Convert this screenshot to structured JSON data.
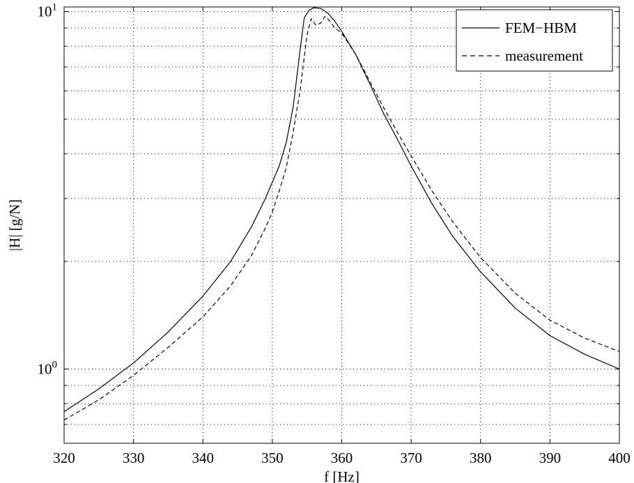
{
  "chart_data": {
    "type": "line",
    "title": "",
    "xlabel": "f [Hz]",
    "ylabel": "|H| [g/N]",
    "xlim": [
      320,
      400
    ],
    "ylim": [
      0.62,
      10.3
    ],
    "yscale": "log",
    "grid": true,
    "legend_position": "top-right",
    "x_ticks": [
      {
        "value": 320,
        "label": "320"
      },
      {
        "value": 330,
        "label": "330"
      },
      {
        "value": 340,
        "label": "340"
      },
      {
        "value": 350,
        "label": "350"
      },
      {
        "value": 360,
        "label": "360"
      },
      {
        "value": 370,
        "label": "370"
      },
      {
        "value": 380,
        "label": "380"
      },
      {
        "value": 390,
        "label": "390"
      },
      {
        "value": 400,
        "label": "400"
      }
    ],
    "y_ticks": [
      {
        "value": 1,
        "base": "10",
        "exp": "0"
      },
      {
        "value": 10,
        "base": "10",
        "exp": "1"
      }
    ],
    "y_minor_grid": [
      0.7,
      0.8,
      0.9,
      2,
      3,
      4,
      5,
      6,
      7,
      8,
      9
    ],
    "series": [
      {
        "name": "FEM−HBM",
        "style": "solid",
        "color": "#000000",
        "x": [
          320,
          325,
          330,
          335,
          340,
          344,
          347,
          349,
          351,
          352,
          353,
          354,
          354.6,
          355.3,
          356,
          357,
          358,
          359,
          360,
          362,
          364,
          366,
          368,
          370,
          373,
          376,
          380,
          385,
          390,
          395,
          400
        ],
        "y": [
          0.76,
          0.88,
          1.04,
          1.27,
          1.6,
          2.0,
          2.5,
          3.0,
          3.7,
          4.3,
          5.4,
          7.8,
          9.6,
          10.1,
          10.25,
          10.2,
          9.9,
          9.4,
          8.8,
          7.6,
          6.3,
          5.2,
          4.4,
          3.7,
          2.9,
          2.35,
          1.87,
          1.48,
          1.24,
          1.1,
          1.0
        ]
      },
      {
        "name": "measurement",
        "style": "dashed",
        "color": "#000000",
        "x": [
          320,
          325,
          330,
          335,
          340,
          344,
          347,
          349,
          350,
          351,
          352,
          353,
          354,
          355,
          355.6,
          356.3,
          357,
          357.6,
          358.3,
          359,
          360,
          362,
          364,
          366,
          368,
          370,
          373,
          376,
          380,
          385,
          390,
          395,
          400
        ],
        "y": [
          0.72,
          0.82,
          0.96,
          1.15,
          1.4,
          1.71,
          2.08,
          2.48,
          2.75,
          3.15,
          3.65,
          4.6,
          6.0,
          8.6,
          9.55,
          9.15,
          9.3,
          9.7,
          9.4,
          9.0,
          8.7,
          7.6,
          6.4,
          5.4,
          4.6,
          3.95,
          3.15,
          2.58,
          2.05,
          1.63,
          1.37,
          1.22,
          1.12
        ]
      }
    ]
  }
}
